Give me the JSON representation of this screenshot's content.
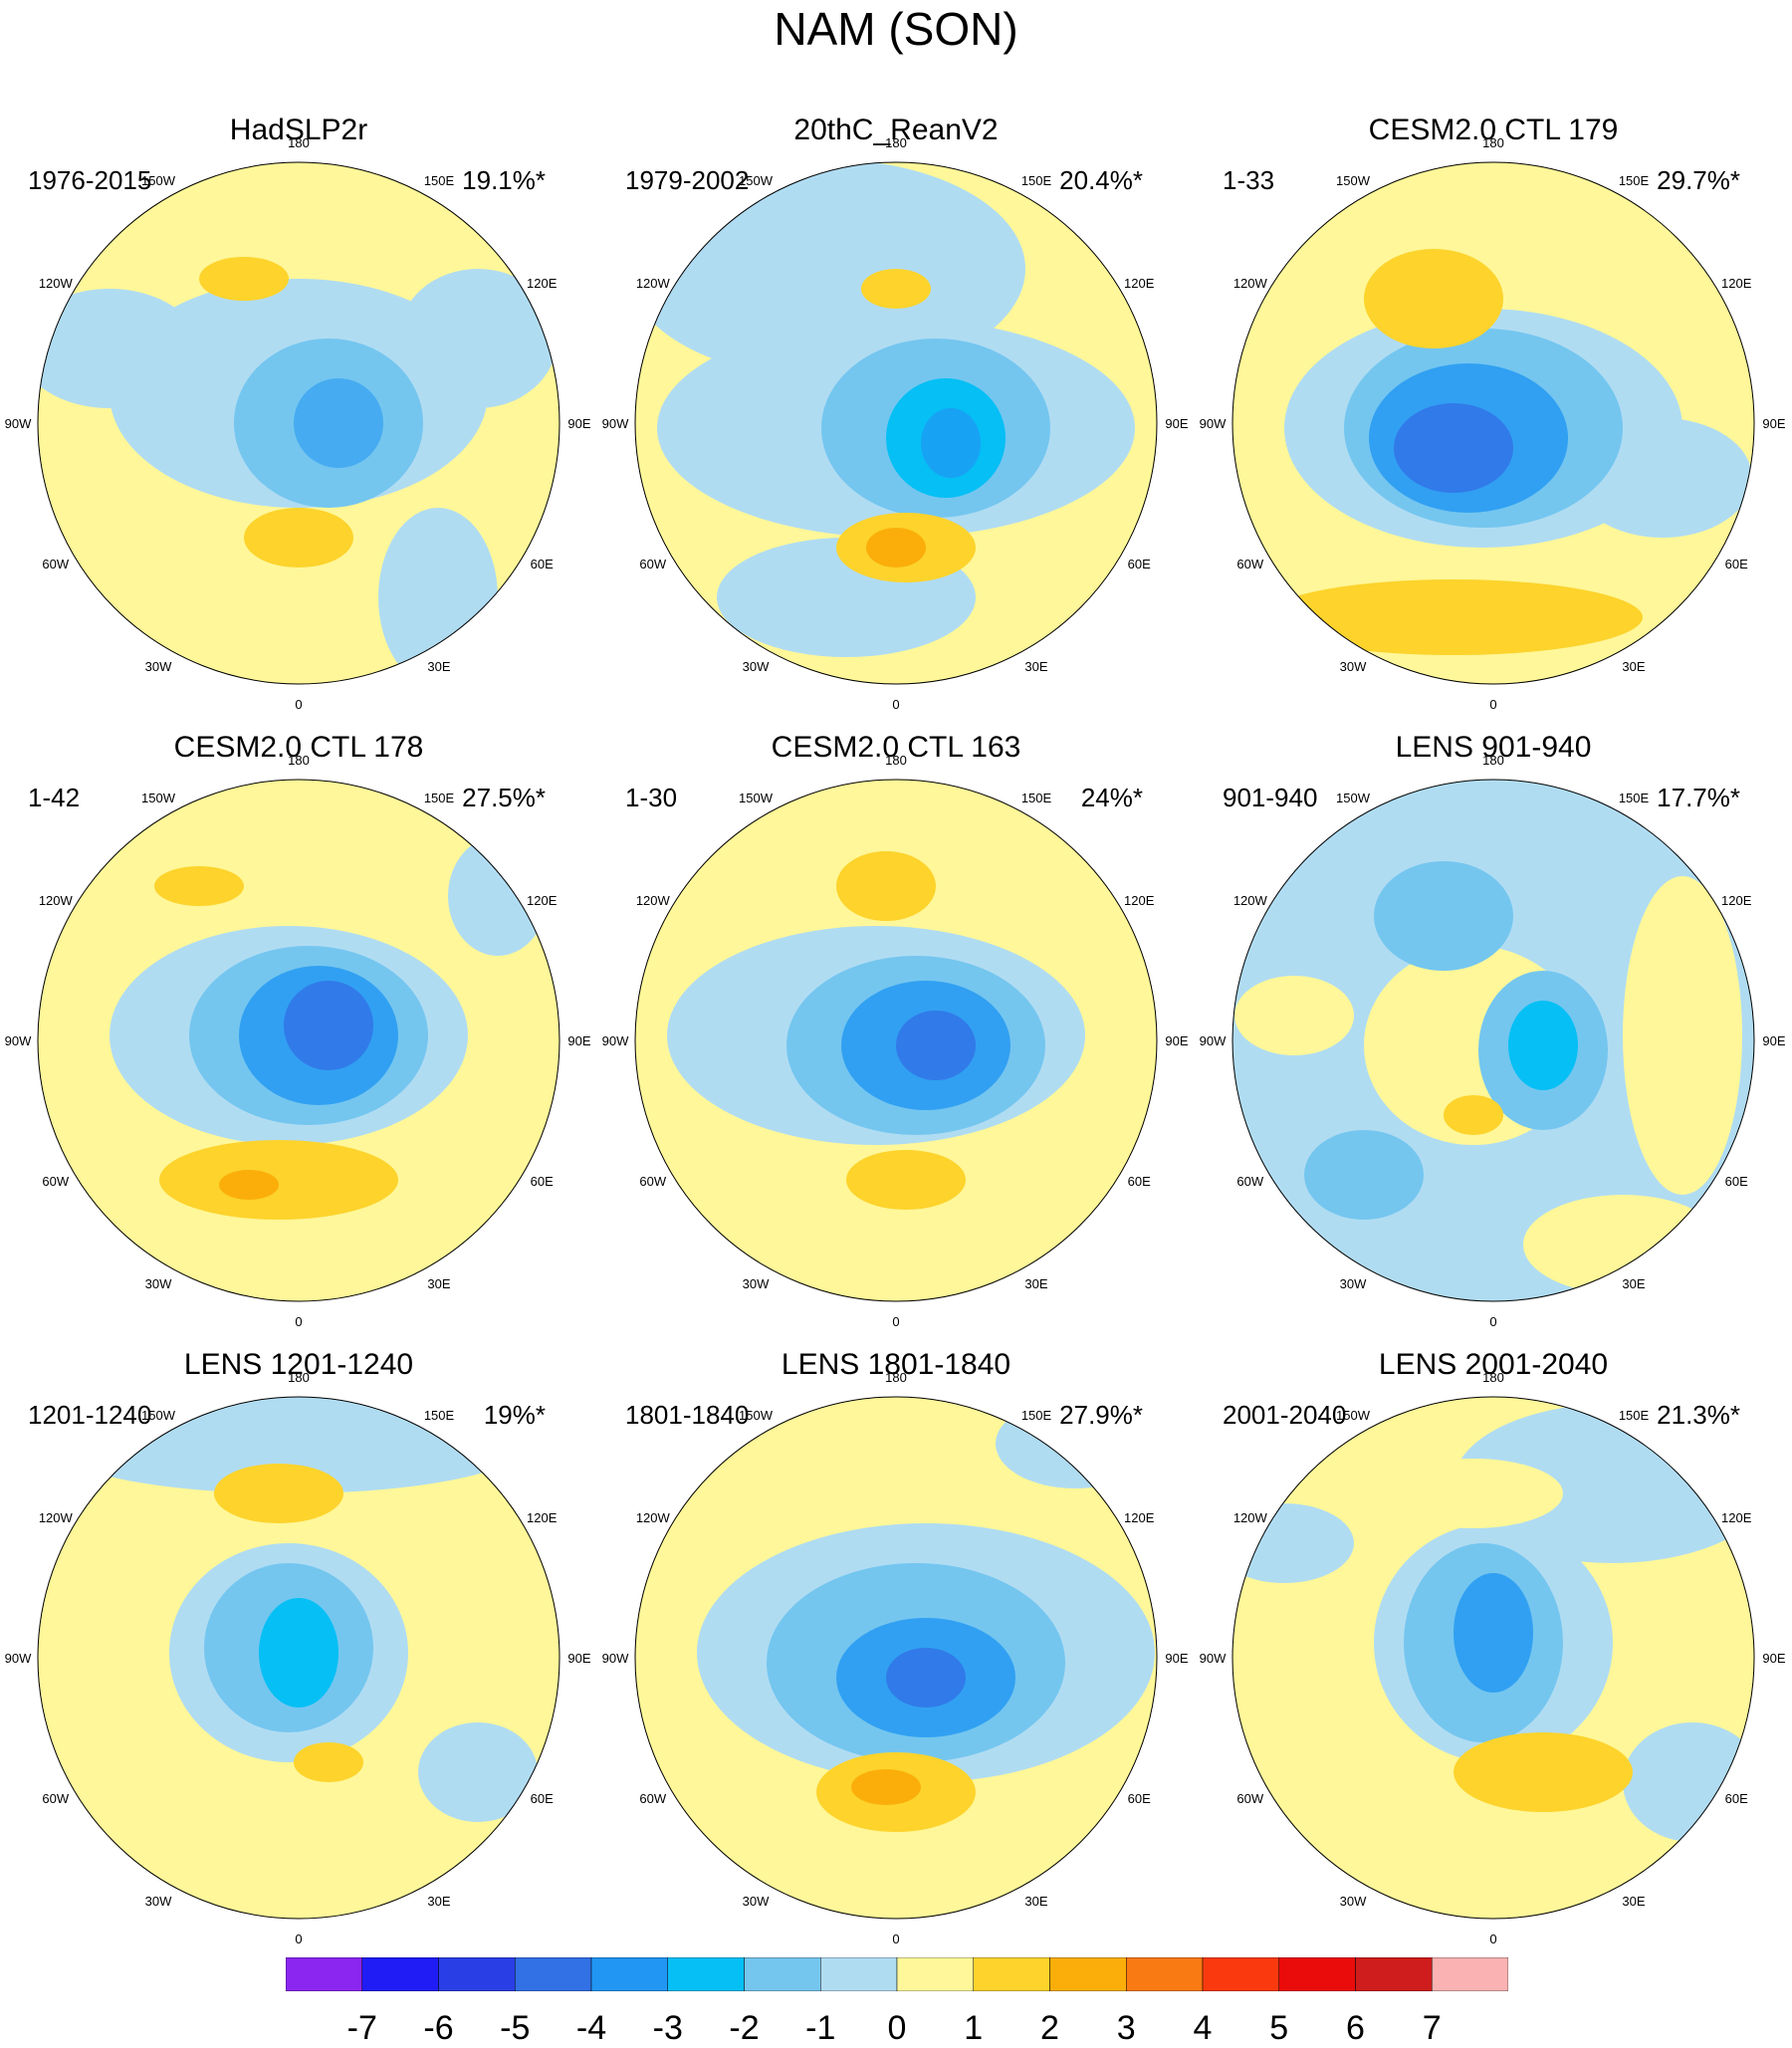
{
  "title": "NAM (SON)",
  "longitude_labels": [
    "180",
    "150E",
    "120E",
    "90E",
    "60E",
    "30E",
    "0",
    "30W",
    "60W",
    "90W",
    "120W",
    "150W"
  ],
  "panels": [
    {
      "title": "HadSLP2r",
      "period": "1976-2015",
      "pct": "19.1%*"
    },
    {
      "title": "20thC_ReanV2",
      "period": "1979-2002",
      "pct": "20.4%*"
    },
    {
      "title": "CESM2.0 CTL 179",
      "period": "1-33",
      "pct": "29.7%*"
    },
    {
      "title": "CESM2.0 CTL 178",
      "period": "1-42",
      "pct": "27.5%*"
    },
    {
      "title": "CESM2.0 CTL 163",
      "period": "1-30",
      "pct": "24%*"
    },
    {
      "title": "LENS 901-940",
      "period": "901-940",
      "pct": "17.7%*"
    },
    {
      "title": "LENS 1201-1240",
      "period": "1201-1240",
      "pct": "19%*"
    },
    {
      "title": "LENS 1801-1840",
      "period": "1801-1840",
      "pct": "27.9%*"
    },
    {
      "title": "LENS 2001-2040",
      "period": "2001-2040",
      "pct": "21.3%*"
    }
  ],
  "colorbar": {
    "ticks": [
      "-7",
      "-6",
      "-5",
      "-4",
      "-3",
      "-2",
      "-1",
      "0",
      "1",
      "2",
      "3",
      "4",
      "5",
      "6",
      "7"
    ],
    "colors": [
      "#8a26f0",
      "#1f1cf5",
      "#2a3ee6",
      "#3270e6",
      "#2196f3",
      "#05bff5",
      "#74c6ef",
      "#b0dcf2",
      "#fff799",
      "#fdd32c",
      "#fbae0a",
      "#f97913",
      "#fa3a0e",
      "#ea0b0b",
      "#cf1c1c",
      "#fbb2b2"
    ]
  },
  "colors": {
    "coast": "#6b6b6b",
    "background": "#ffffff"
  }
}
